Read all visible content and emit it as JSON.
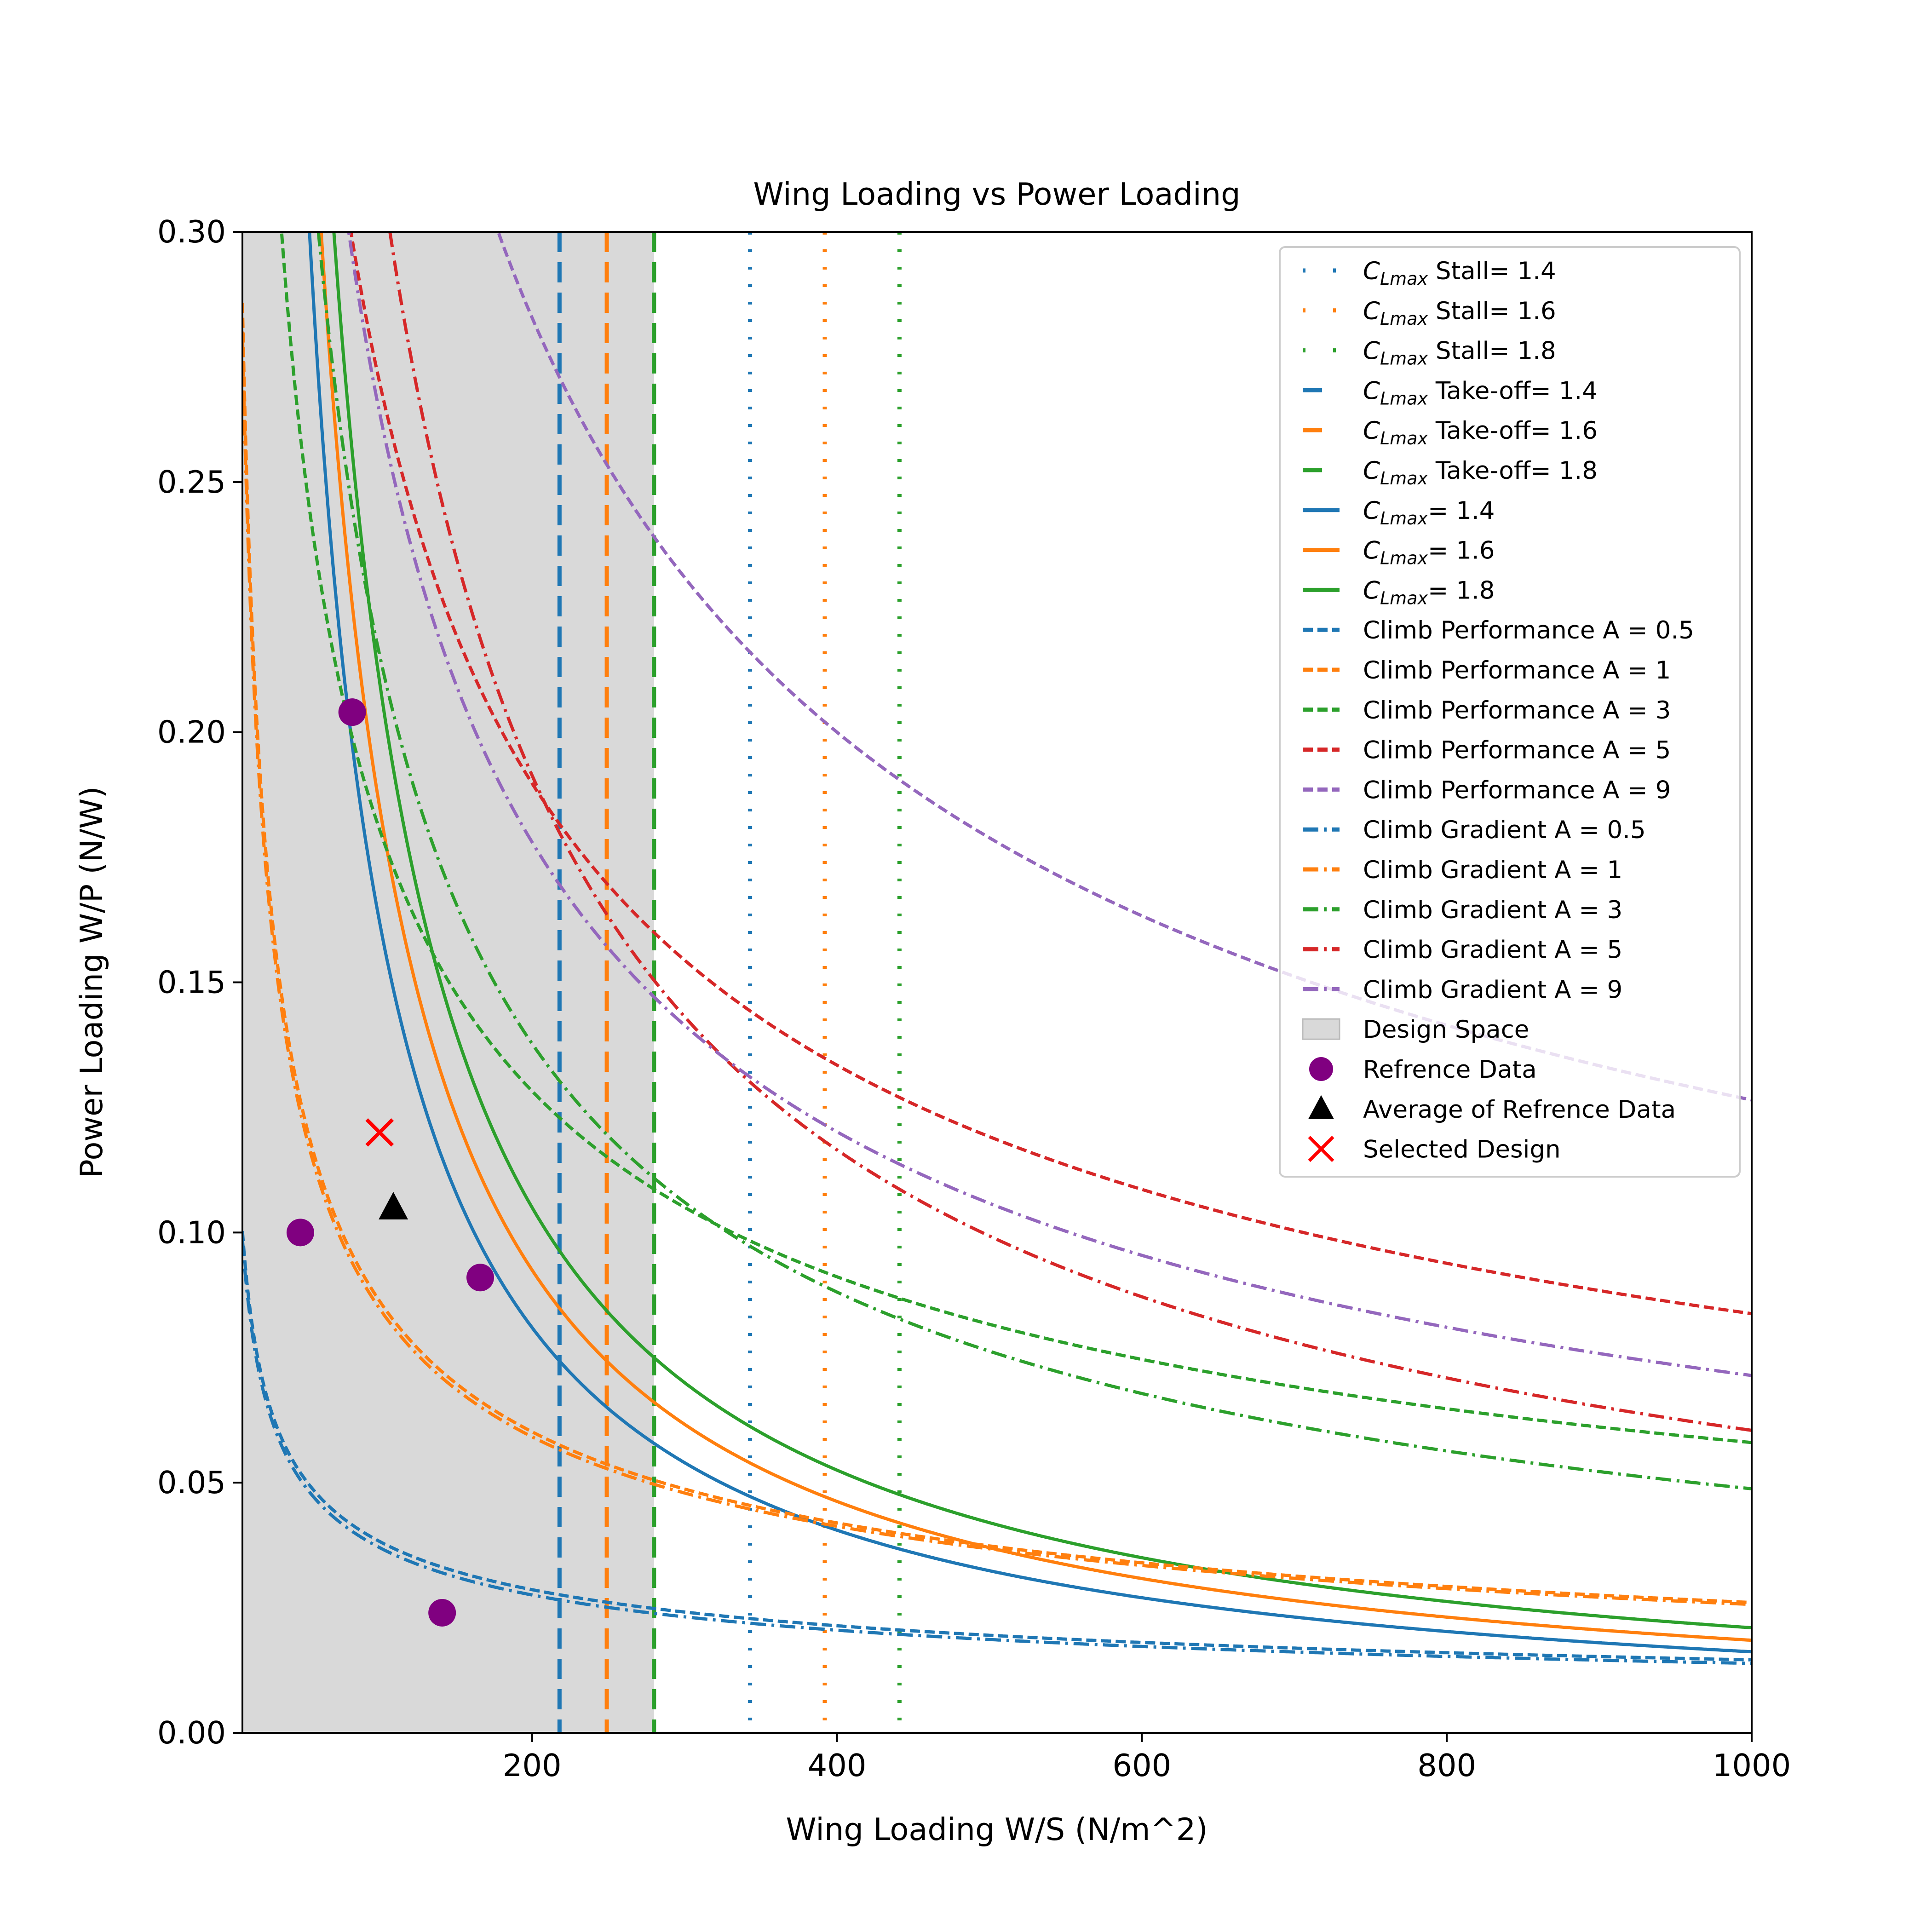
{
  "chart_data": {
    "type": "line",
    "title": "Wing Loading vs Power Loading",
    "xlabel": "Wing Loading W/S (N/m^2)",
    "ylabel": "Power Loading W/P (N/W)",
    "xlim": [
      10,
      1000
    ],
    "ylim": [
      0,
      0.3
    ],
    "xticks": [
      200,
      400,
      600,
      800,
      1000
    ],
    "xtick_labels": [
      "200",
      "400",
      "600",
      "800",
      "1000"
    ],
    "yticks": [
      0.0,
      0.05,
      0.1,
      0.15,
      0.2,
      0.25,
      0.3
    ],
    "ytick_labels": [
      "0.00",
      "0.05",
      "0.10",
      "0.15",
      "0.20",
      "0.25",
      "0.30"
    ],
    "grid": false,
    "legend_position": "top-right",
    "colors": {
      "blue": "#1f77b4",
      "orange": "#ff7f0e",
      "green": "#2ca02c",
      "red": "#d62728",
      "purple": "#9467bd",
      "reference": "#800080",
      "selected": "#ff0000",
      "design_space": "#d9d9d9"
    },
    "vertical_lines": [
      {
        "label_pre": "C",
        "label_sub": "Lmax",
        "label_post": " Stall= 1.4",
        "x": 343,
        "color": "#1f77b4",
        "style": "dotted"
      },
      {
        "label_pre": "C",
        "label_sub": "Lmax",
        "label_post": " Stall= 1.6",
        "x": 392,
        "color": "#ff7f0e",
        "style": "dotted"
      },
      {
        "label_pre": "C",
        "label_sub": "Lmax",
        "label_post": " Stall= 1.8",
        "x": 441,
        "color": "#2ca02c",
        "style": "dotted"
      },
      {
        "label_pre": "C",
        "label_sub": "Lmax",
        "label_post": " Take-off= 1.4",
        "x": 218,
        "color": "#1f77b4",
        "style": "longdash"
      },
      {
        "label_pre": "C",
        "label_sub": "Lmax",
        "label_post": " Take-off= 1.6",
        "x": 249,
        "color": "#ff7f0e",
        "style": "longdash"
      },
      {
        "label_pre": "C",
        "label_sub": "Lmax",
        "label_post": " Take-off= 1.8",
        "x": 280,
        "color": "#2ca02c",
        "style": "longdash"
      }
    ],
    "curves": [
      {
        "label_pre": "C",
        "label_sub": "Lmax",
        "label_post": "= 1.4",
        "color": "#1f77b4",
        "style": "solid",
        "k": 16.2,
        "p": 1.0
      },
      {
        "label_pre": "C",
        "label_sub": "Lmax",
        "label_post": "= 1.6",
        "color": "#ff7f0e",
        "style": "solid",
        "k": 18.5,
        "p": 1.0
      },
      {
        "label_pre": "C",
        "label_sub": "Lmax",
        "label_post": "= 1.8",
        "color": "#2ca02c",
        "style": "solid",
        "k": 21.0,
        "p": 1.0
      },
      {
        "label": "Climb Performance A = 0.5",
        "color": "#1f77b4",
        "style": "dashed",
        "k": 0.263,
        "p": 0.4187
      },
      {
        "label": "Climb Performance A = 1",
        "color": "#ff7f0e",
        "style": "dashed",
        "k": 0.9465,
        "p": 0.5201
      },
      {
        "label": "Climb Performance A = 3",
        "color": "#2ca02c",
        "style": "dashed",
        "k": 1.747,
        "p": 0.4929
      },
      {
        "label": "Climb Performance A = 5",
        "color": "#d62728",
        "style": "dashed",
        "k": 2.8,
        "p": 0.508
      },
      {
        "label": "Climb Performance A = 9",
        "color": "#9467bd",
        "style": "dashed",
        "k": 4.0,
        "p": 0.5
      },
      {
        "label": "Climb Gradient A = 0.5",
        "color": "#1f77b4",
        "style": "dashdot",
        "k": 0.263,
        "p": 0.4258
      },
      {
        "label": "Climb Gradient A = 1",
        "color": "#ff7f0e",
        "style": "dashdot",
        "k": 0.9253,
        "p": 0.519
      },
      {
        "label": "Climb Gradient A = 3",
        "color": "#2ca02c",
        "style": "dashdot",
        "k": 4.2,
        "p": 0.645
      },
      {
        "label": "Climb Gradient A = 5",
        "color": "#d62728",
        "style": "dashdot",
        "k": 8.5,
        "p": 0.716
      },
      {
        "label": "Climb Gradient A = 9",
        "color": "#9467bd",
        "style": "dashdot",
        "k": 3.6,
        "p": 0.5675
      }
    ],
    "design_space": {
      "label": "Design Space",
      "x_range": [
        10,
        280
      ]
    },
    "reference_data": {
      "label": "Refrence Data",
      "points": [
        {
          "x": 48,
          "y": 0.1
        },
        {
          "x": 82,
          "y": 0.204
        },
        {
          "x": 166,
          "y": 0.091
        },
        {
          "x": 141,
          "y": 0.024
        }
      ]
    },
    "average_reference": {
      "label": "Average of Refrence Data",
      "x": 109,
      "y": 0.105
    },
    "selected_design": {
      "label": "Selected Design",
      "x": 100,
      "y": 0.12
    }
  }
}
